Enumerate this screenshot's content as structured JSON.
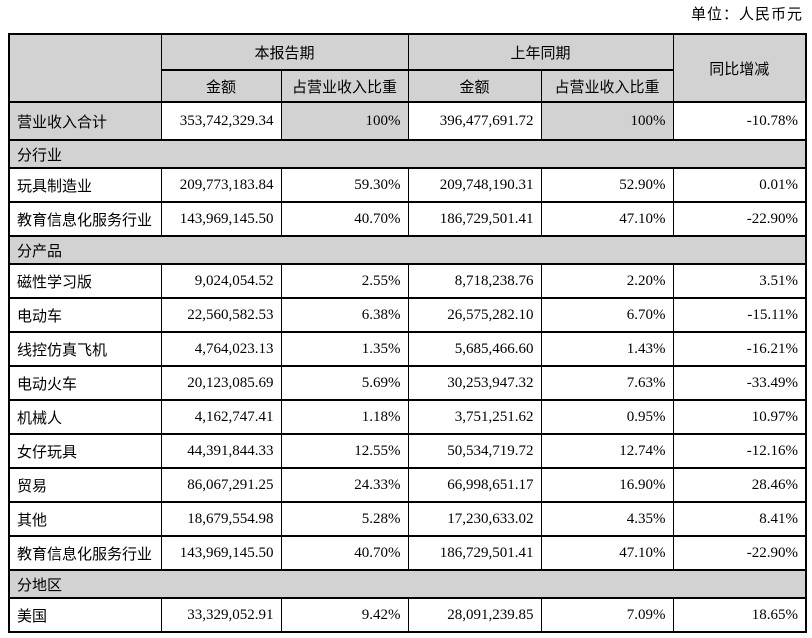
{
  "unit_label": "单位：人民币元",
  "colors": {
    "cell_shading": "#d2d2d2",
    "border": "#000000",
    "text": "#000000",
    "background": "#ffffff"
  },
  "table": {
    "header": {
      "corner": "",
      "current_period": "本报告期",
      "prior_period": "上年同期",
      "yoy": "同比增减",
      "amount_label": "金额",
      "share_label": "占营业收入比重"
    },
    "rows": [
      {
        "type": "data",
        "total": true,
        "label": "营业收入合计",
        "cur_amount": "353,742,329.34",
        "cur_share": "100%",
        "prior_amount": "396,477,691.72",
        "prior_share": "100%",
        "yoy": "-10.78%"
      },
      {
        "type": "section",
        "id": "industry",
        "label": "分行业"
      },
      {
        "type": "data",
        "label": "玩具制造业",
        "cur_amount": "209,773,183.84",
        "cur_share": "59.30%",
        "prior_amount": "209,748,190.31",
        "prior_share": "52.90%",
        "yoy": "0.01%"
      },
      {
        "type": "data",
        "label": "教育信息化服务行业",
        "cur_amount": "143,969,145.50",
        "cur_share": "40.70%",
        "prior_amount": "186,729,501.41",
        "prior_share": "47.10%",
        "yoy": "-22.90%"
      },
      {
        "type": "section",
        "id": "product",
        "label": "分产品"
      },
      {
        "type": "data",
        "label": "磁性学习版",
        "cur_amount": "9,024,054.52",
        "cur_share": "2.55%",
        "prior_amount": "8,718,238.76",
        "prior_share": "2.20%",
        "yoy": "3.51%"
      },
      {
        "type": "data",
        "label": "电动车",
        "cur_amount": "22,560,582.53",
        "cur_share": "6.38%",
        "prior_amount": "26,575,282.10",
        "prior_share": "6.70%",
        "yoy": "-15.11%"
      },
      {
        "type": "data",
        "label": "线控仿真飞机",
        "cur_amount": "4,764,023.13",
        "cur_share": "1.35%",
        "prior_amount": "5,685,466.60",
        "prior_share": "1.43%",
        "yoy": "-16.21%"
      },
      {
        "type": "data",
        "label": "电动火车",
        "cur_amount": "20,123,085.69",
        "cur_share": "5.69%",
        "prior_amount": "30,253,947.32",
        "prior_share": "7.63%",
        "yoy": "-33.49%"
      },
      {
        "type": "data",
        "label": "机械人",
        "cur_amount": "4,162,747.41",
        "cur_share": "1.18%",
        "prior_amount": "3,751,251.62",
        "prior_share": "0.95%",
        "yoy": "10.97%"
      },
      {
        "type": "data",
        "label": "女仔玩具",
        "cur_amount": "44,391,844.33",
        "cur_share": "12.55%",
        "prior_amount": "50,534,719.72",
        "prior_share": "12.74%",
        "yoy": "-12.16%"
      },
      {
        "type": "data",
        "label": "贸易",
        "cur_amount": "86,067,291.25",
        "cur_share": "24.33%",
        "prior_amount": "66,998,651.17",
        "prior_share": "16.90%",
        "yoy": "28.46%"
      },
      {
        "type": "data",
        "label": "其他",
        "cur_amount": "18,679,554.98",
        "cur_share": "5.28%",
        "prior_amount": "17,230,633.02",
        "prior_share": "4.35%",
        "yoy": "8.41%"
      },
      {
        "type": "data",
        "label": "教育信息化服务行业",
        "cur_amount": "143,969,145.50",
        "cur_share": "40.70%",
        "prior_amount": "186,729,501.41",
        "prior_share": "47.10%",
        "yoy": "-22.90%"
      },
      {
        "type": "section",
        "id": "region",
        "label": "分地区"
      },
      {
        "type": "data",
        "label": "美国",
        "cur_amount": "33,329,052.91",
        "cur_share": "9.42%",
        "prior_amount": "28,091,239.85",
        "prior_share": "7.09%",
        "yoy": "18.65%"
      }
    ]
  }
}
